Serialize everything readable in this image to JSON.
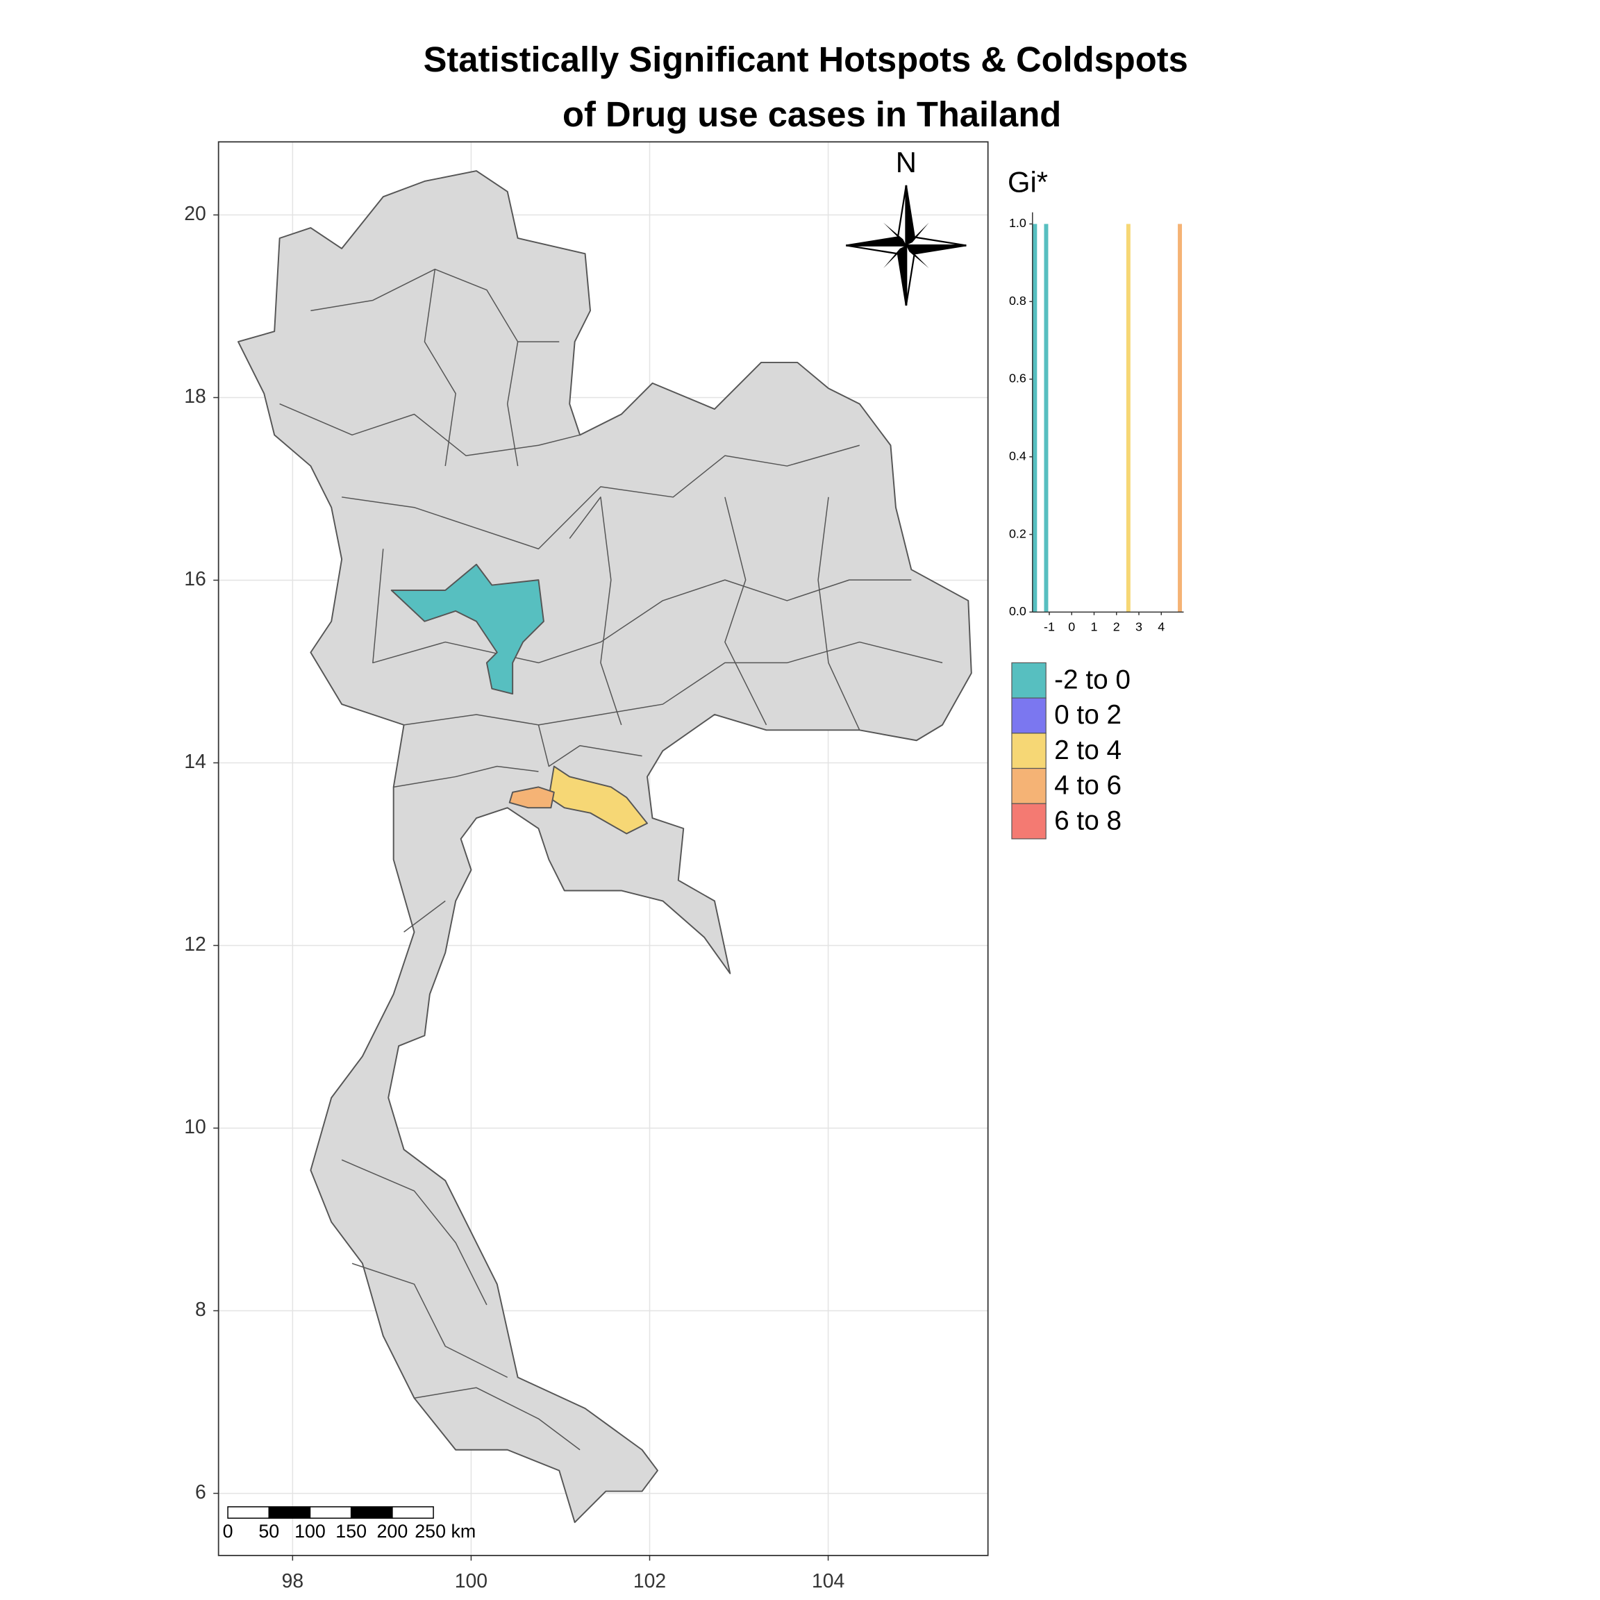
{
  "title": [
    "Statistically Significant Hotspots & Coldspots",
    "of Drug use cases in Thailand"
  ],
  "map": {
    "xlim": [
      97.17,
      105.79
    ],
    "ylim": [
      5.32,
      20.8
    ],
    "xticks": [
      98,
      100,
      102,
      104
    ],
    "yticks": [
      6,
      8,
      10,
      12,
      14,
      16,
      18,
      20
    ],
    "grid": true,
    "north_label": "N",
    "scale_bar": [
      "0",
      "50",
      "100",
      "150",
      "200",
      "250 km"
    ]
  },
  "legend": {
    "title": "Gi*",
    "items": [
      {
        "label": "-2 to 0",
        "color": "#57bfc0"
      },
      {
        "label": "0 to 2",
        "color": "#7b77f0"
      },
      {
        "label": "2 to 4",
        "color": "#f6d775"
      },
      {
        "label": "4 to 6",
        "color": "#f5b375"
      },
      {
        "label": "6 to 8",
        "color": "#f47a72"
      }
    ]
  },
  "chart_data": {
    "type": "histogram",
    "x": [
      -1.64,
      -1.14,
      2.53,
      4.83
    ],
    "values": [
      1,
      1,
      1,
      1
    ],
    "colors": [
      "#57bfc0",
      "#57bfc0",
      "#f6d775",
      "#f5b375"
    ],
    "xlim": [
      -1.75,
      5.0
    ],
    "ylim": [
      0,
      1.03
    ],
    "xticks": [
      -1,
      0,
      1,
      2,
      3,
      4
    ],
    "yticks": [
      {
        "value": 0,
        "label": "0.0"
      },
      {
        "value": 0.2,
        "label": "0.2"
      },
      {
        "value": 0.4,
        "label": "0.4"
      },
      {
        "value": 0.6,
        "label": "0.6"
      },
      {
        "value": 0.8,
        "label": "0.8"
      },
      {
        "value": 1,
        "label": "1.0"
      }
    ]
  }
}
